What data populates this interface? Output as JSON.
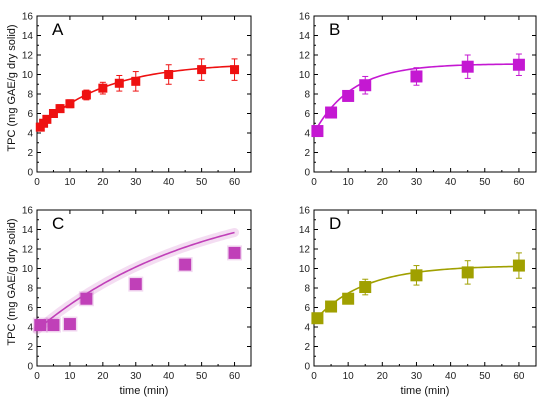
{
  "figure": {
    "ylabel": "TPC (mg GAE/g dry solid)",
    "xlabel": "time (min)"
  },
  "chart_data": [
    {
      "type": "scatter",
      "panel": "A",
      "color": "#ee1111",
      "fit_line": true,
      "xlim": [
        0,
        65
      ],
      "ylim": [
        0,
        16
      ],
      "xticks": [
        0,
        10,
        20,
        30,
        40,
        50,
        60
      ],
      "yticks": [
        0,
        2,
        4,
        6,
        8,
        10,
        12,
        14,
        16
      ],
      "x": [
        1,
        2,
        3,
        5,
        7,
        10,
        15,
        20,
        25,
        30,
        40,
        50,
        60
      ],
      "y": [
        4.6,
        5.0,
        5.4,
        6.0,
        6.5,
        7.0,
        7.9,
        8.6,
        9.1,
        9.3,
        10.0,
        10.5,
        10.5
      ],
      "err": [
        0.3,
        0.3,
        0.3,
        0.4,
        0.4,
        0.4,
        0.5,
        0.6,
        0.8,
        1.0,
        1.0,
        1.1,
        1.1
      ],
      "fit_x": [
        0,
        60
      ],
      "fit_asymptote": 11.2,
      "fit_y0": 4.3,
      "fit_rate": 0.05
    },
    {
      "type": "scatter",
      "panel": "B",
      "color": "#c418d2",
      "fit_line": true,
      "xlim": [
        0,
        65
      ],
      "ylim": [
        0,
        16
      ],
      "xticks": [
        0,
        10,
        20,
        30,
        40,
        50,
        60
      ],
      "yticks": [
        0,
        2,
        4,
        6,
        8,
        10,
        12,
        14,
        16
      ],
      "x": [
        1,
        5,
        10,
        15,
        30,
        45,
        60
      ],
      "y": [
        4.2,
        6.1,
        7.8,
        8.9,
        9.8,
        10.8,
        11.0
      ],
      "err": [
        0.3,
        0.3,
        0.5,
        0.9,
        0.9,
        1.2,
        1.1
      ],
      "fit_x": [
        0,
        60
      ],
      "fit_asymptote": 11.1,
      "fit_y0": 4.0,
      "fit_rate": 0.09
    },
    {
      "type": "scatter",
      "panel": "C",
      "color": "#c040b8",
      "fit_line": true,
      "halo": true,
      "xlim": [
        0,
        65
      ],
      "ylim": [
        0,
        16
      ],
      "xticks": [
        0,
        10,
        20,
        30,
        40,
        50,
        60
      ],
      "yticks": [
        0,
        2,
        4,
        6,
        8,
        10,
        12,
        14,
        16
      ],
      "x": [
        1,
        5,
        10,
        15,
        30,
        45,
        60
      ],
      "y": [
        4.2,
        4.2,
        4.3,
        6.9,
        8.4,
        10.4,
        11.6
      ],
      "err": [
        0.3,
        0.3,
        0.3,
        0.3,
        0.3,
        0.3,
        0.3
      ],
      "fit_x": [
        0,
        60
      ],
      "fit_asymptote": 18.0,
      "fit_y0": 3.7,
      "fit_rate": 0.02
    },
    {
      "type": "scatter",
      "panel": "D",
      "color": "#a0a000",
      "fit_line": true,
      "xlim": [
        0,
        65
      ],
      "ylim": [
        0,
        16
      ],
      "xticks": [
        0,
        10,
        20,
        30,
        40,
        50,
        60
      ],
      "yticks": [
        0,
        2,
        4,
        6,
        8,
        10,
        12,
        14,
        16
      ],
      "x": [
        1,
        5,
        10,
        15,
        30,
        45,
        60
      ],
      "y": [
        4.9,
        6.1,
        6.9,
        8.1,
        9.3,
        9.6,
        10.3
      ],
      "err": [
        0.4,
        0.3,
        0.4,
        0.8,
        1.0,
        1.2,
        1.3
      ],
      "fit_x": [
        0,
        60
      ],
      "fit_asymptote": 10.3,
      "fit_y0": 4.6,
      "fit_rate": 0.07
    }
  ]
}
